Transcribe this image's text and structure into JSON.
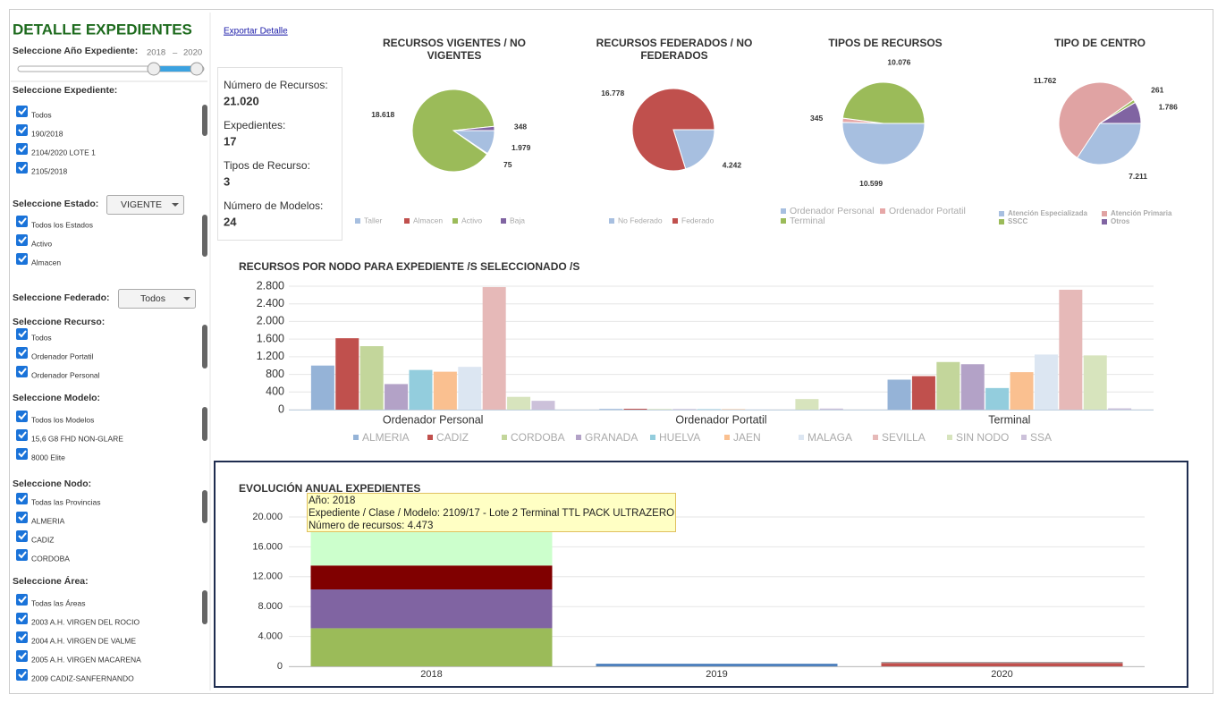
{
  "sidebar": {
    "title": "DETALLE EXPEDIENTES",
    "year": {
      "label": "Seleccione Año Expediente:",
      "from": "2018",
      "dash": "–",
      "to": "2020"
    },
    "sections": [
      {
        "label": "Seleccione Expediente:",
        "items": [
          "Todos",
          "190/2018",
          "2104/2020 LOTE 1",
          "2105/2018"
        ]
      },
      {
        "label": "Seleccione Estado:",
        "dropdown": "VIGENTE",
        "items": [
          "Todos los Estados",
          "Activo",
          "Almacen"
        ]
      },
      {
        "label": "Seleccione Federado:",
        "dropdown": "Todos",
        "items": []
      },
      {
        "label": "Seleccione Recurso:",
        "items": [
          "Todos",
          "Ordenador Portatil",
          "Ordenador Personal"
        ]
      },
      {
        "label": "Seleccione Modelo:",
        "items": [
          "Todos los Modelos",
          "15,6 G8 FHD NON-GLARE",
          "8000 Elite"
        ]
      },
      {
        "label": "Seleccione Nodo:",
        "items": [
          "Todas las Provincias",
          "ALMERIA",
          "CADIZ",
          "CORDOBA"
        ]
      },
      {
        "label": "Seleccione Área:",
        "items": [
          "Todas las Áreas",
          "2003 A.H. VIRGEN DEL ROCIO",
          "2004 A.H. VIRGEN DE VALME",
          "2005 A.H. VIRGEN MACARENA",
          "2009 CADIZ-SANFERNANDO"
        ]
      }
    ]
  },
  "export_link": "Exportar Detalle",
  "kpis": [
    {
      "label": "Número de Recursos:",
      "value": "21.020"
    },
    {
      "label": "Expedientes:",
      "value": "17"
    },
    {
      "label": "Tipos de Recurso:",
      "value": "3"
    },
    {
      "label": "Número de Modelos:",
      "value": "24"
    }
  ],
  "chart_data": [
    {
      "type": "pie",
      "title": "RECURSOS VIGENTES / NO VIGENTES",
      "categories": [
        "Taller",
        "Almacen",
        "Activo",
        "Baja"
      ],
      "values": [
        1979,
        75,
        18618,
        348
      ],
      "value_labels": [
        "1.979",
        "75",
        "18.618",
        "348"
      ],
      "colors": [
        "#a7bfe0",
        "#c0504d",
        "#9bbb59",
        "#8064a2"
      ]
    },
    {
      "type": "pie",
      "title": "RECURSOS FEDERADOS / NO FEDERADOS",
      "categories": [
        "No Federado",
        "Federado"
      ],
      "values": [
        4242,
        16778
      ],
      "value_labels": [
        "4.242",
        "16.778"
      ],
      "colors": [
        "#a7bfe0",
        "#c0504d"
      ]
    },
    {
      "type": "pie",
      "title": "TIPOS DE RECURSOS",
      "categories": [
        "Ordenador Personal",
        "Ordenador Portatil",
        "Terminal"
      ],
      "values": [
        10599,
        345,
        10076
      ],
      "value_labels": [
        "10.599",
        "345",
        "10.076"
      ],
      "colors": [
        "#a7bfe0",
        "#e6a7a7",
        "#9bbb59"
      ]
    },
    {
      "type": "pie",
      "title": "TIPO DE CENTRO",
      "categories": [
        "Atención Especializada",
        "Atención Primaria",
        "SSCC",
        "Otros"
      ],
      "values": [
        7211,
        11762,
        261,
        1786
      ],
      "value_labels": [
        "7.211",
        "11.762",
        "261",
        "1.786"
      ],
      "colors": [
        "#a7bfe0",
        "#e0a3a3",
        "#9bbb59",
        "#8064a2"
      ]
    },
    {
      "type": "bar",
      "title": "RECURSOS POR NODO PARA EXPEDIENTE /S SELECCIONADO /S",
      "categories": [
        "Ordenador Personal",
        "Ordenador Portatil",
        "Terminal"
      ],
      "series": [
        {
          "name": "ALMERIA",
          "color": "#95b3d7",
          "values": [
            1000,
            15,
            680
          ]
        },
        {
          "name": "CADIZ",
          "color": "#c0504d",
          "values": [
            1620,
            20,
            760
          ]
        },
        {
          "name": "CORDOBA",
          "color": "#c3d69b",
          "values": [
            1440,
            10,
            1080
          ]
        },
        {
          "name": "GRANADA",
          "color": "#b3a2c7",
          "values": [
            580,
            10,
            1030
          ]
        },
        {
          "name": "HUELVA",
          "color": "#93cddd",
          "values": [
            900,
            10,
            490
          ]
        },
        {
          "name": "JAEN",
          "color": "#fac090",
          "values": [
            860,
            10,
            850
          ]
        },
        {
          "name": "MALAGA",
          "color": "#dce6f2",
          "values": [
            970,
            5,
            1250
          ]
        },
        {
          "name": "SEVILLA",
          "color": "#e6b9b8",
          "values": [
            2780,
            0,
            2720
          ]
        },
        {
          "name": "SIN NODO",
          "color": "#d7e4bd",
          "values": [
            290,
            240,
            1230
          ]
        },
        {
          "name": "SSA",
          "color": "#ccc1da",
          "values": [
            200,
            25,
            30
          ]
        }
      ],
      "ylim": [
        0,
        2800
      ],
      "yticks": [
        0,
        400,
        800,
        {
          "value": 1200,
          "label": "1.200"
        },
        {
          "value": 1600,
          "label": "1.600"
        },
        {
          "value": 2000,
          "label": "2.000"
        },
        {
          "value": 2400,
          "label": "2.400"
        },
        {
          "value": 2800,
          "label": "2.800"
        }
      ],
      "grid": true
    },
    {
      "type": "stacked_bar",
      "title": "EVOLUCIÓN ANUAL EXPEDIENTES",
      "categories": [
        "2018",
        "2019",
        "2020"
      ],
      "series": [
        {
          "color": "#9bbb59",
          "values": [
            5100,
            null,
            null
          ]
        },
        {
          "color": "#8064a2",
          "values": [
            5200,
            null,
            null
          ]
        },
        {
          "color": "#800000",
          "values": [
            3200,
            null,
            null
          ]
        },
        {
          "color": "#ccffcc",
          "values": [
            4473,
            null,
            null
          ]
        },
        {
          "color": "#4f81bd",
          "values": [
            null,
            350,
            null
          ]
        },
        {
          "color": "#c0504d",
          "values": [
            null,
            null,
            450
          ]
        },
        {
          "color": "#a6a6a6",
          "values": [
            null,
            null,
            150
          ]
        }
      ],
      "ylim": [
        0,
        20000
      ],
      "yticks": [
        0,
        {
          "value": 4000,
          "label": "4.000"
        },
        {
          "value": 8000,
          "label": "8.000"
        },
        {
          "value": 12000,
          "label": "12.000"
        },
        {
          "value": 16000,
          "label": "16.000"
        },
        {
          "value": 20000,
          "label": "20.000"
        }
      ],
      "grid": true,
      "tooltip": [
        "Año: 2018",
        "Expediente / Clase / Modelo: 2109/17 - Lote 2 Terminal TTL PACK ULTRAZERO",
        "Número de recursos: 4.473"
      ]
    }
  ]
}
